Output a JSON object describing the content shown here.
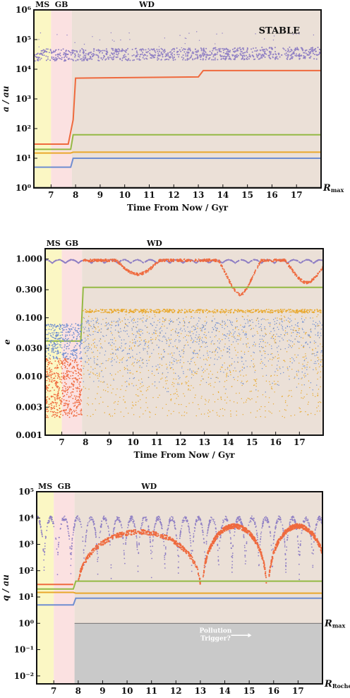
{
  "chart_data": [
    {
      "type": "scatter",
      "panel": "semimajor-axis",
      "ylabel": "a / au",
      "xlabel": "Time From Now / Gyr",
      "yscale": "log",
      "ylim": [
        1,
        1000000
      ],
      "xlim": [
        6.3,
        18
      ],
      "xticks": [
        7,
        8,
        9,
        10,
        11,
        12,
        13,
        14,
        15,
        16,
        17
      ],
      "yticks": [
        1,
        10,
        100,
        1000,
        10000,
        100000,
        1000000
      ],
      "ytick_labels": [
        "10⁰",
        "10¹",
        "10²",
        "10³",
        "10⁴",
        "10⁵",
        "10⁶"
      ],
      "phases": [
        {
          "label": "MS",
          "from": 6.3,
          "to": 7.0,
          "color": "#fbf7c4"
        },
        {
          "label": "GB",
          "from": 7.0,
          "to": 7.85,
          "color": "#fbe1e1"
        },
        {
          "label": "WD",
          "from": 7.85,
          "to": 18,
          "color": "#ebe0d7"
        }
      ],
      "annotations": [
        {
          "text": "STABLE",
          "x": 16.3,
          "y": 200000
        },
        {
          "text": "R",
          "sub": "max",
          "x": 18.2,
          "y": 1
        }
      ],
      "series": [
        {
          "color": "#8f7fc4",
          "kind": "scatter",
          "x": [
            6.3,
            18
          ],
          "y": [
            30000,
            35000
          ],
          "scatter_factor": 1.6
        },
        {
          "color": "#ef6a3e",
          "kind": "line",
          "x": [
            6.3,
            7.7,
            7.9,
            8.0,
            13.0,
            13.2,
            18
          ],
          "y": [
            30,
            30,
            200,
            5000,
            5500,
            9000,
            9000
          ]
        },
        {
          "color": "#94b945",
          "kind": "line",
          "x": [
            6.3,
            7.8,
            7.9,
            18
          ],
          "y": [
            20,
            20,
            62,
            62
          ]
        },
        {
          "color": "#e9a82c",
          "kind": "line",
          "x": [
            6.3,
            7.8,
            7.9,
            18
          ],
          "y": [
            15,
            15,
            16,
            16
          ]
        },
        {
          "color": "#6f8ed1",
          "kind": "line",
          "x": [
            6.3,
            7.8,
            7.9,
            18
          ],
          "y": [
            5,
            5,
            10,
            10
          ]
        }
      ]
    },
    {
      "type": "scatter",
      "panel": "eccentricity",
      "ylabel": "e",
      "xlabel": "Time From Now / Gyr",
      "yscale": "log",
      "ylim": [
        0.001,
        1.5
      ],
      "xlim": [
        6.3,
        18
      ],
      "xticks": [
        7,
        8,
        9,
        10,
        11,
        12,
        13,
        14,
        15,
        16,
        17
      ],
      "yticks": [
        0.001,
        0.003,
        0.01,
        0.03,
        0.1,
        0.3,
        1.0
      ],
      "ytick_labels": [
        "0.001",
        "0.003",
        "0.010",
        "0.030",
        "0.100",
        "0.300",
        "1.000"
      ],
      "phases": [
        {
          "label": "MS",
          "from": 6.3,
          "to": 7.0,
          "color": "#fbf7c4"
        },
        {
          "label": "GB",
          "from": 7.0,
          "to": 7.85,
          "color": "#fbe1e1"
        },
        {
          "label": "WD",
          "from": 7.85,
          "to": 18,
          "color": "#ebe0d7"
        }
      ],
      "series": [
        {
          "color": "#8f7fc4",
          "kind": "oscillation",
          "base": 0.85,
          "amp": 0.12,
          "period": 0.55
        },
        {
          "color": "#ef6a3e",
          "kind": "dips",
          "level": 0.95,
          "dips": [
            [
              10.2,
              0.55
            ],
            [
              14.5,
              0.25
            ],
            [
              17.3,
              0.4
            ]
          ]
        },
        {
          "color": "#94b945",
          "kind": "line",
          "x": [
            6.3,
            7.8,
            7.9,
            18
          ],
          "y": [
            0.04,
            0.04,
            0.33,
            0.33
          ]
        },
        {
          "color": "#e9a82c",
          "kind": "band",
          "x": [
            7.9,
            18
          ],
          "y": [
            0.13,
            0.13
          ]
        },
        {
          "color": "#6f8ed1",
          "kind": "cloud",
          "x": [
            7.9,
            18
          ],
          "lo": 0.005,
          "hi": 0.1
        }
      ]
    },
    {
      "type": "scatter",
      "panel": "pericentre",
      "ylabel": "q / au",
      "xlabel": "Time From Now / Gyr",
      "yscale": "log",
      "ylim": [
        0.005,
        100000
      ],
      "xlim": [
        6.3,
        18
      ],
      "xticks": [
        7,
        8,
        9,
        10,
        11,
        12,
        13,
        14,
        15,
        16,
        17
      ],
      "yticks": [
        0.01,
        0.1,
        1,
        10,
        100,
        1000,
        10000,
        100000
      ],
      "ytick_labels": [
        "10⁻²",
        "10⁻¹",
        "10⁰",
        "10¹",
        "10²",
        "10³",
        "10⁴",
        "10⁵"
      ],
      "phases": [
        {
          "label": "MS",
          "from": 6.3,
          "to": 7.0,
          "color": "#fbf7c4"
        },
        {
          "label": "GB",
          "from": 7.0,
          "to": 7.85,
          "color": "#fbe1e1"
        },
        {
          "label": "WD",
          "from": 7.85,
          "to": 18,
          "color": "#ebe0d7"
        }
      ],
      "annotations": [
        {
          "text": "R",
          "sub": "max",
          "x": 18.2,
          "y": 1
        },
        {
          "text": "R",
          "sub": "Roche",
          "x": 18.2,
          "y": 0.005
        },
        {
          "text": "Pollution Trigger?",
          "x": 14.2,
          "y": 0.35
        }
      ],
      "series": [
        {
          "color": "#8f7fc4",
          "kind": "oscillation_log",
          "base": 10000,
          "lo": 30,
          "period": 0.55
        },
        {
          "color": "#ef6a3e",
          "kind": "arches",
          "arches": [
            [
              8.0,
              13.0,
              3000
            ],
            [
              13.1,
              15.7,
              5000
            ],
            [
              15.8,
              18.2,
              5000
            ]
          ]
        },
        {
          "color": "#94b945",
          "kind": "line",
          "x": [
            6.3,
            7.8,
            7.9,
            18
          ],
          "y": [
            20,
            20,
            40,
            40
          ]
        },
        {
          "color": "#e9a82c",
          "kind": "line",
          "x": [
            6.3,
            7.8,
            7.9,
            18
          ],
          "y": [
            15,
            15,
            14,
            14
          ]
        },
        {
          "color": "#6f8ed1",
          "kind": "line",
          "x": [
            6.3,
            7.8,
            7.9,
            18
          ],
          "y": [
            5,
            5,
            9,
            9
          ]
        }
      ]
    }
  ]
}
